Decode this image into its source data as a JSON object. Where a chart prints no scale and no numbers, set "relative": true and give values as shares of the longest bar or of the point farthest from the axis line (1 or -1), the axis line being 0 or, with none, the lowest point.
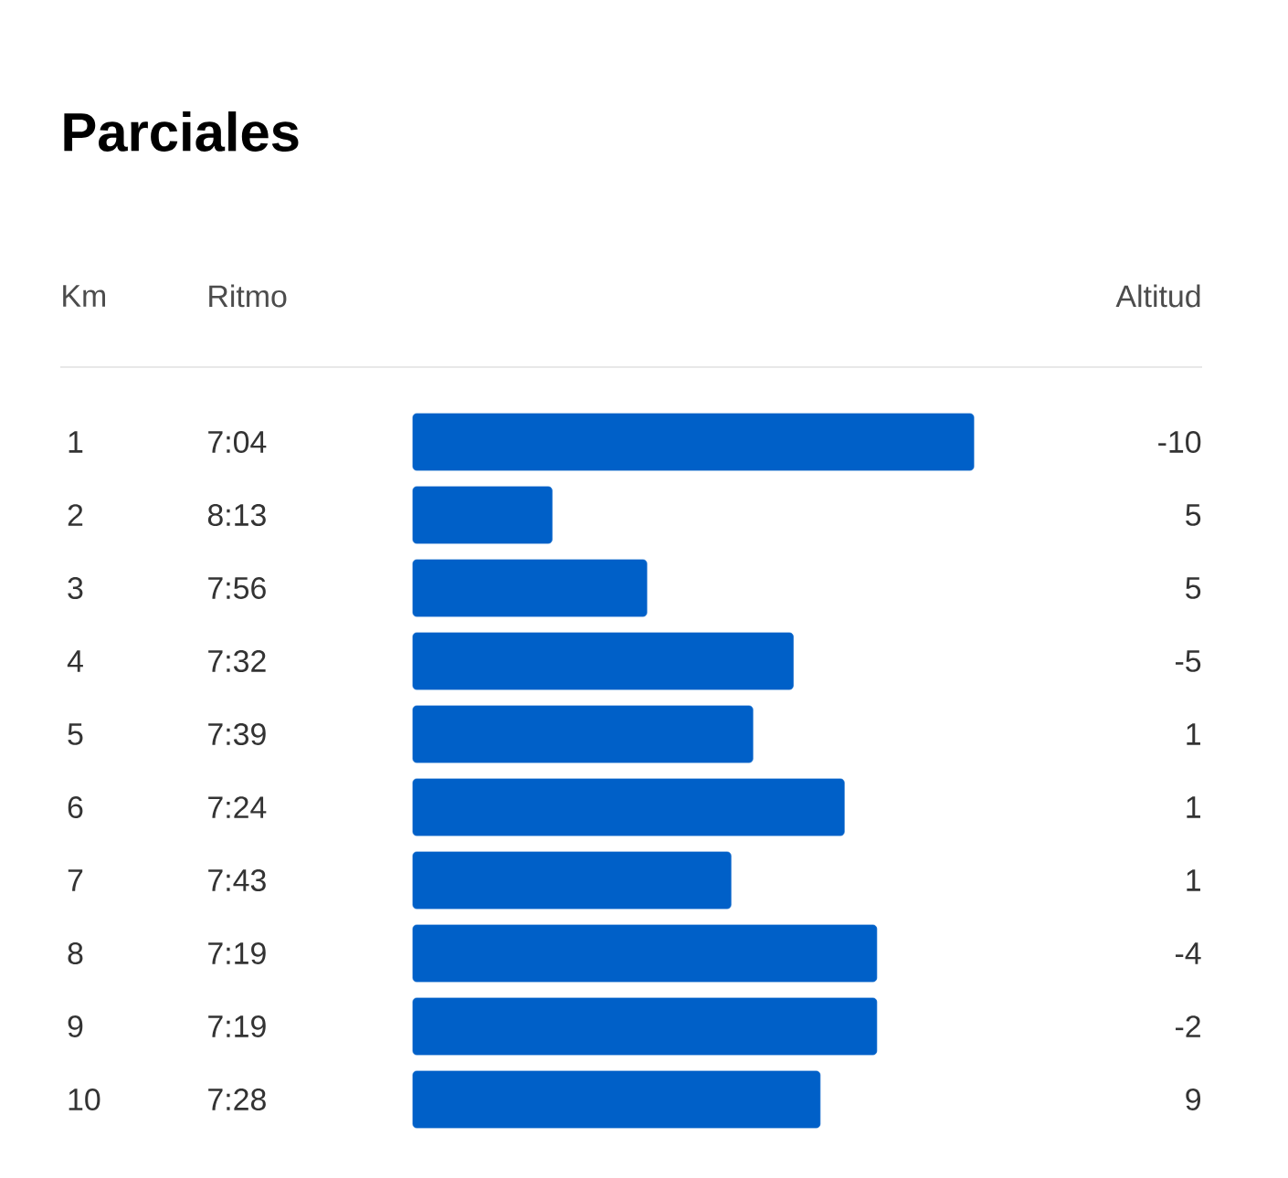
{
  "chart_data": {
    "type": "bar",
    "orientation": "horizontal",
    "relative": true,
    "title": "Parciales",
    "categories": [
      "1",
      "2",
      "3",
      "4",
      "5",
      "6",
      "7",
      "8",
      "9",
      "10"
    ],
    "values": [
      1,
      0.248,
      0.417,
      0.678,
      0.606,
      0.769,
      0.567,
      0.827,
      0.827,
      0.726
    ],
    "color": "#0060c8",
    "annotations": [
      "Km",
      "Ritmo",
      "Altitud",
      "7:04",
      "8:13",
      "7:56",
      "7:32",
      "7:39",
      "7:24",
      "7:43",
      "7:19",
      "7:19",
      "7:28",
      "-10",
      "5",
      "5",
      "-5",
      "1",
      "1",
      "1",
      "-4",
      "-2",
      "9"
    ]
  }
}
